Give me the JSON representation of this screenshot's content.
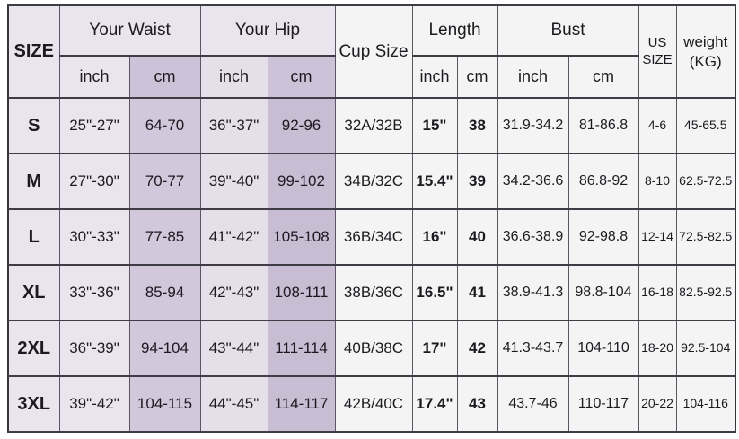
{
  "table": {
    "header": {
      "size": "SIZE",
      "waist": "Your Waist",
      "hip": "Your Hip",
      "cup": "Cup Size",
      "length": "Length",
      "bust": "Bust",
      "us_size": "US SIZE",
      "weight": "weight (KG)",
      "inch": "inch",
      "cm": "cm"
    },
    "rows": [
      {
        "size": "S",
        "waist_inch": "25\"-27\"",
        "waist_cm": "64-70",
        "hip_inch": "36\"-37\"",
        "hip_cm": "92-96",
        "cup": "32A/32B",
        "length_inch": "15\"",
        "length_cm": "38",
        "bust_inch": "31.9-34.2",
        "bust_cm": "81-86.8",
        "us": "4-6",
        "weight": "45-65.5"
      },
      {
        "size": "M",
        "waist_inch": "27\"-30\"",
        "waist_cm": "70-77",
        "hip_inch": "39\"-40\"",
        "hip_cm": "99-102",
        "cup": "34B/32C",
        "length_inch": "15.4\"",
        "length_cm": "39",
        "bust_inch": "34.2-36.6",
        "bust_cm": "86.8-92",
        "us": "8-10",
        "weight": "62.5-72.5"
      },
      {
        "size": "L",
        "waist_inch": "30\"-33\"",
        "waist_cm": "77-85",
        "hip_inch": "41\"-42\"",
        "hip_cm": "105-108",
        "cup": "36B/34C",
        "length_inch": "16\"",
        "length_cm": "40",
        "bust_inch": "36.6-38.9",
        "bust_cm": "92-98.8",
        "us": "12-14",
        "weight": "72.5-82.5"
      },
      {
        "size": "XL",
        "waist_inch": "33\"-36\"",
        "waist_cm": "85-94",
        "hip_inch": "42\"-43\"",
        "hip_cm": "108-111",
        "cup": "38B/36C",
        "length_inch": "16.5\"",
        "length_cm": "41",
        "bust_inch": "38.9-41.3",
        "bust_cm": "98.8-104",
        "us": "16-18",
        "weight": "82.5-92.5"
      },
      {
        "size": "2XL",
        "waist_inch": "36\"-39\"",
        "waist_cm": "94-104",
        "hip_inch": "43\"-44\"",
        "hip_cm": "111-114",
        "cup": "40B/38C",
        "length_inch": "17\"",
        "length_cm": "42",
        "bust_inch": "41.3-43.7",
        "bust_cm": "104-110",
        "us": "18-20",
        "weight": "92.5-104"
      },
      {
        "size": "3XL",
        "waist_inch": "39\"-42\"",
        "waist_cm": "104-115",
        "hip_inch": "44\"-45\"",
        "hip_cm": "114-117",
        "cup": "42B/40C",
        "length_inch": "17.4\"",
        "length_cm": "43",
        "bust_inch": "43.7-46",
        "bust_cm": "110-117",
        "us": "20-22",
        "weight": "104-116"
      }
    ]
  },
  "colors": {
    "lavender_light": "#e9e4ee",
    "lavender_hip_light": "#e4dfe9",
    "lavender_cm_header": "#cdc2d7",
    "lavender_waist_cm": "#d2c7db",
    "lavender_hip_cm": "#c9bdd4",
    "right_columns_bg": "#f5f4f5",
    "border_dark": "#403c46",
    "text": "#1c1a1e"
  }
}
